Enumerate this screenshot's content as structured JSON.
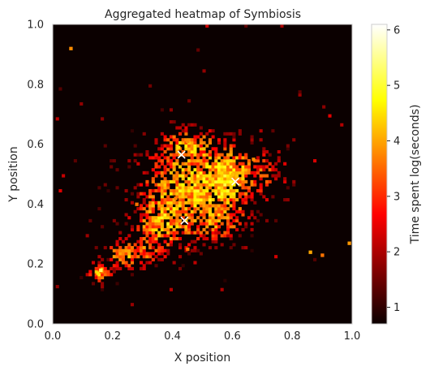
{
  "chart_data": {
    "type": "heatmap",
    "title": "Aggregated heatmap of Symbiosis",
    "xlabel": "X position",
    "ylabel": "Y position",
    "xlim": [
      0.0,
      1.0
    ],
    "ylim": [
      0.0,
      1.0
    ],
    "x_ticks": [
      0.0,
      0.2,
      0.4,
      0.6,
      0.8,
      1.0
    ],
    "y_ticks": [
      0.0,
      0.2,
      0.4,
      0.6,
      0.8,
      1.0
    ],
    "x_tick_labels": [
      "0.0",
      "0.2",
      "0.4",
      "0.6",
      "0.8",
      "1.0"
    ],
    "y_tick_labels": [
      "0.0",
      "0.2",
      "0.4",
      "0.6",
      "0.8",
      "1.0"
    ],
    "grid": false,
    "colormap": "hot",
    "background_color": "#0b0000",
    "colorbar": {
      "label": "Time spent log(seconds)",
      "range": [
        0.7,
        6.1
      ],
      "ticks": [
        1,
        2,
        3,
        4,
        5,
        6
      ],
      "tick_labels": [
        "1",
        "2",
        "3",
        "4",
        "5",
        "6"
      ]
    },
    "markers": {
      "symbol": "x",
      "color": "#ffffff",
      "points": [
        {
          "x": 0.43,
          "y": 0.565
        },
        {
          "x": 0.61,
          "y": 0.475
        },
        {
          "x": 0.44,
          "y": 0.345
        }
      ]
    },
    "bins": 100,
    "hotspots": [
      {
        "x": 0.16,
        "y": 0.18,
        "value": 5.2
      },
      {
        "x": 0.15,
        "y": 0.17,
        "value": 4.5
      },
      {
        "x": 0.06,
        "y": 0.92,
        "value": 3.8
      },
      {
        "x": 0.86,
        "y": 0.24,
        "value": 4.0
      },
      {
        "x": 0.9,
        "y": 0.23,
        "value": 3.6
      },
      {
        "x": 0.99,
        "y": 0.27,
        "value": 3.9
      },
      {
        "x": 0.42,
        "y": 0.59,
        "value": 4.5
      },
      {
        "x": 0.45,
        "y": 0.61,
        "value": 3.8
      },
      {
        "x": 0.6,
        "y": 0.5,
        "value": 4.2
      },
      {
        "x": 0.67,
        "y": 0.55,
        "value": 3.8
      },
      {
        "x": 0.45,
        "y": 0.25,
        "value": 3.6
      },
      {
        "x": 0.41,
        "y": 0.42,
        "value": 3.7
      },
      {
        "x": 0.28,
        "y": 0.4,
        "value": 3.6
      }
    ]
  }
}
